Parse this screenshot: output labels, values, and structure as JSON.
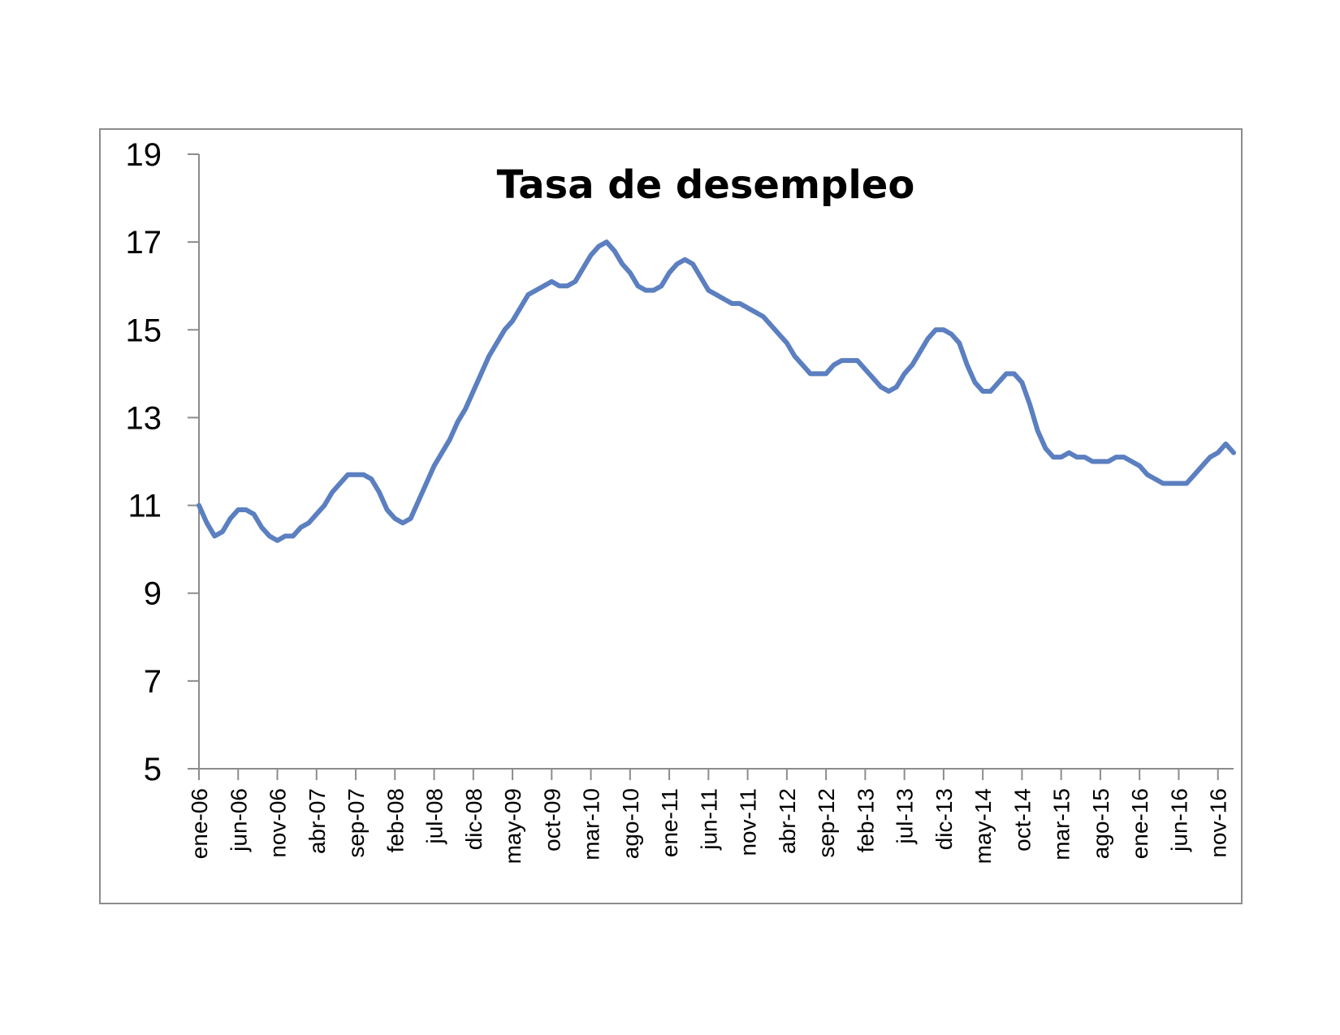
{
  "chart_data": {
    "type": "line",
    "title": "Tasa de desempleo",
    "xlabel": "",
    "ylabel": "",
    "ylim": [
      5,
      19
    ],
    "yticks": [
      5,
      7,
      9,
      11,
      13,
      15,
      17,
      19
    ],
    "xtick_labels": [
      "ene-06",
      "jun-06",
      "nov-06",
      "abr-07",
      "sep-07",
      "feb-08",
      "jul-08",
      "dic-08",
      "may-09",
      "oct-09",
      "mar-10",
      "ago-10",
      "ene-11",
      "jun-11",
      "nov-11",
      "abr-12",
      "sep-12",
      "feb-13",
      "jul-13",
      "dic-13",
      "may-14",
      "oct-14",
      "mar-15",
      "ago-15",
      "ene-16",
      "jun-16",
      "nov-16"
    ],
    "grid": false,
    "legend": "none",
    "line_color": "#5b7fc0",
    "series": [
      {
        "values": [
          11.0,
          10.6,
          10.3,
          10.4,
          10.7,
          10.9,
          10.9,
          10.8,
          10.5,
          10.3,
          10.2,
          10.3,
          10.3,
          10.5,
          10.6,
          10.8,
          11.0,
          11.3,
          11.5,
          11.7,
          11.7,
          11.7,
          11.6,
          11.3,
          10.9,
          10.7,
          10.6,
          10.7,
          11.1,
          11.5,
          11.9,
          12.2,
          12.5,
          12.9,
          13.2,
          13.6,
          14.0,
          14.4,
          14.7,
          15.0,
          15.2,
          15.5,
          15.8,
          15.9,
          16.0,
          16.1,
          16.0,
          16.0,
          16.1,
          16.4,
          16.7,
          16.9,
          17.0,
          16.8,
          16.5,
          16.3,
          16.0,
          15.9,
          15.9,
          16.0,
          16.3,
          16.5,
          16.6,
          16.5,
          16.2,
          15.9,
          15.8,
          15.7,
          15.6,
          15.6,
          15.5,
          15.4,
          15.3,
          15.1,
          14.9,
          14.7,
          14.4,
          14.2,
          14.0,
          14.0,
          14.0,
          14.2,
          14.3,
          14.3,
          14.3,
          14.1,
          13.9,
          13.7,
          13.6,
          13.7,
          14.0,
          14.2,
          14.5,
          14.8,
          15.0,
          15.0,
          14.9,
          14.7,
          14.2,
          13.8,
          13.6,
          13.6,
          13.8,
          14.0,
          14.0,
          13.8,
          13.3,
          12.7,
          12.3,
          12.1,
          12.1,
          12.2,
          12.1,
          12.1,
          12.0,
          12.0,
          12.0,
          12.1,
          12.1,
          12.0,
          11.9,
          11.7,
          11.6,
          11.5,
          11.5,
          11.5,
          11.5,
          11.7,
          11.9,
          12.1,
          12.2,
          12.4,
          12.2
        ]
      }
    ]
  }
}
